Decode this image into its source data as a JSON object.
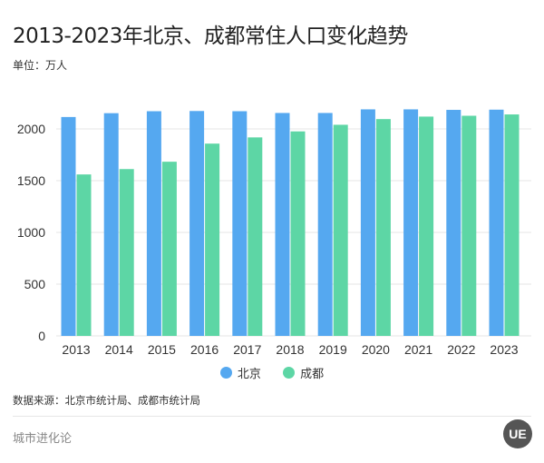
{
  "chart_data": {
    "type": "bar",
    "title": "2013-2023年北京、成都常住人口变化趋势",
    "unit_label": "单位：万人",
    "categories": [
      "2013",
      "2014",
      "2015",
      "2016",
      "2017",
      "2018",
      "2019",
      "2020",
      "2021",
      "2022",
      "2023"
    ],
    "series": [
      {
        "name": "北京",
        "color": "#55a8f0",
        "values": [
          2115,
          2152,
          2171,
          2173,
          2171,
          2154,
          2154,
          2189,
          2189,
          2184,
          2186
        ]
      },
      {
        "name": "成都",
        "color": "#5dd6a5",
        "values": [
          1560,
          1612,
          1683,
          1858,
          1918,
          1976,
          2040,
          2095,
          2119,
          2127,
          2140
        ]
      }
    ],
    "yticks": [
      "0",
      "500",
      "1000",
      "1500",
      "2000"
    ],
    "ylim": [
      0,
      2250
    ],
    "grid": true,
    "legend_position": "bottom",
    "source": "数据来源：北京市统计局、成都市统计局"
  },
  "footer": {
    "brand": "城市进化论",
    "logo": "UE"
  }
}
